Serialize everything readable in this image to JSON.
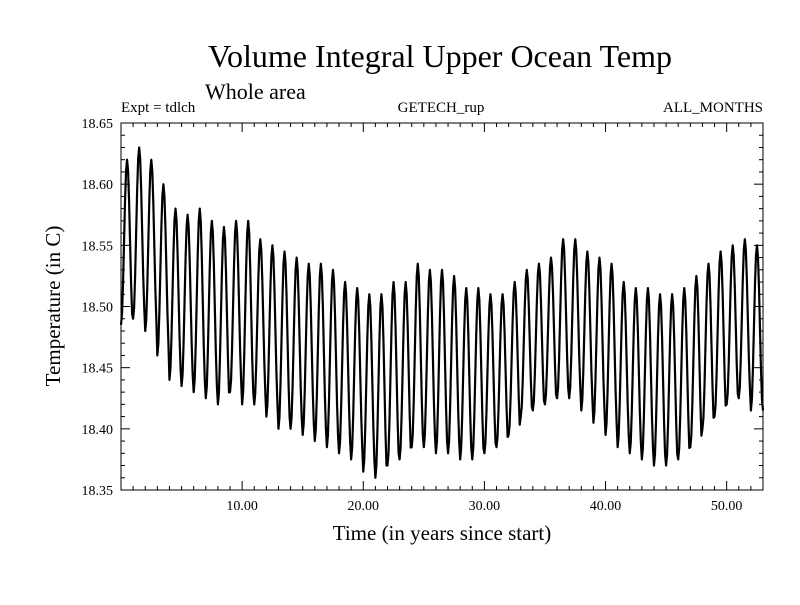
{
  "chart_data": {
    "type": "line",
    "title": "Volume Integral Upper Ocean Temp",
    "subtitle": "Whole area",
    "header_left": "Expt = tdlch",
    "header_center": "GETECH_rup",
    "header_right": "ALL_MONTHS",
    "xlabel": "Time (in years since start)",
    "ylabel": "Temperature (in C)",
    "xlim": [
      0,
      53
    ],
    "ylim": [
      18.35,
      18.65
    ],
    "x_ticks": [
      10,
      20,
      30,
      40,
      50
    ],
    "x_tick_labels": [
      "10.00",
      "20.00",
      "30.00",
      "40.00",
      "50.00"
    ],
    "y_ticks": [
      18.35,
      18.4,
      18.45,
      18.5,
      18.55,
      18.6,
      18.65
    ],
    "y_tick_labels": [
      "18.35",
      "18.40",
      "18.45",
      "18.50",
      "18.55",
      "18.60",
      "18.65"
    ],
    "series": [
      {
        "name": "Volume integral upper ocean temperature",
        "color": "#000000",
        "cycle_years": 1,
        "annual_peaks": [
          18.62,
          18.63,
          18.62,
          18.6,
          18.58,
          18.575,
          18.58,
          18.57,
          18.565,
          18.57,
          18.57,
          18.555,
          18.55,
          18.545,
          18.54,
          18.535,
          18.535,
          18.53,
          18.52,
          18.515,
          18.51,
          18.51,
          18.52,
          18.52,
          18.535,
          18.53,
          18.53,
          18.525,
          18.515,
          18.515,
          18.51,
          18.51,
          18.52,
          18.53,
          18.535,
          18.54,
          18.555,
          18.555,
          18.545,
          18.54,
          18.535,
          18.52,
          18.515,
          18.515,
          18.51,
          18.51,
          18.515,
          18.525,
          18.535,
          18.545,
          18.55,
          18.555,
          18.55
        ],
        "annual_troughs": [
          18.485,
          18.49,
          18.48,
          18.46,
          18.44,
          18.435,
          18.43,
          18.425,
          18.42,
          18.43,
          18.42,
          18.42,
          18.41,
          18.4,
          18.4,
          18.395,
          18.39,
          18.385,
          18.38,
          18.375,
          18.365,
          18.36,
          18.37,
          18.375,
          18.385,
          18.385,
          18.38,
          18.38,
          18.375,
          18.375,
          18.38,
          18.385,
          18.395,
          18.41,
          18.415,
          18.42,
          18.425,
          18.425,
          18.415,
          18.405,
          18.395,
          18.385,
          18.38,
          18.375,
          18.37,
          18.37,
          18.375,
          18.385,
          18.4,
          18.41,
          18.42,
          18.425,
          18.415
        ]
      }
    ]
  }
}
